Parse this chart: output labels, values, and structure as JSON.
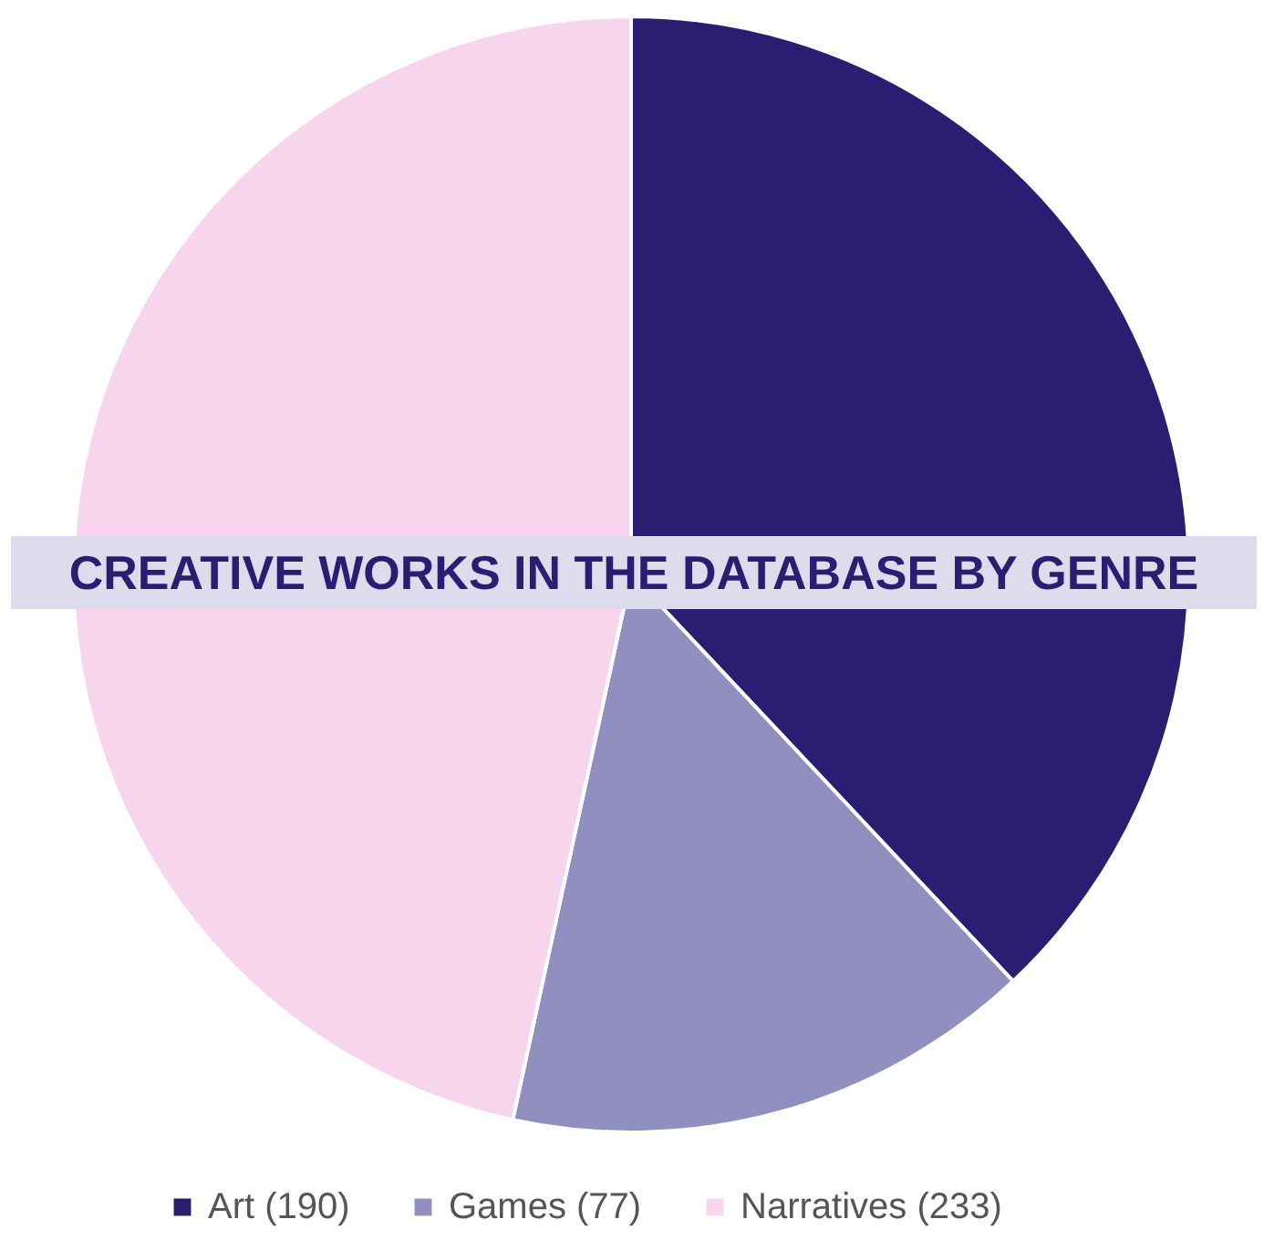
{
  "chart_data": {
    "type": "pie",
    "title": "CREATIVE WORKS IN THE DATABASE BY GENRE",
    "categories": [
      "Art (190)",
      "Games (77)",
      "Narratives (233)"
    ],
    "values": [
      190,
      77,
      233
    ],
    "colors": [
      "#2a1e72",
      "#918ec0",
      "#f7d5ec"
    ],
    "legend": "bottom"
  }
}
